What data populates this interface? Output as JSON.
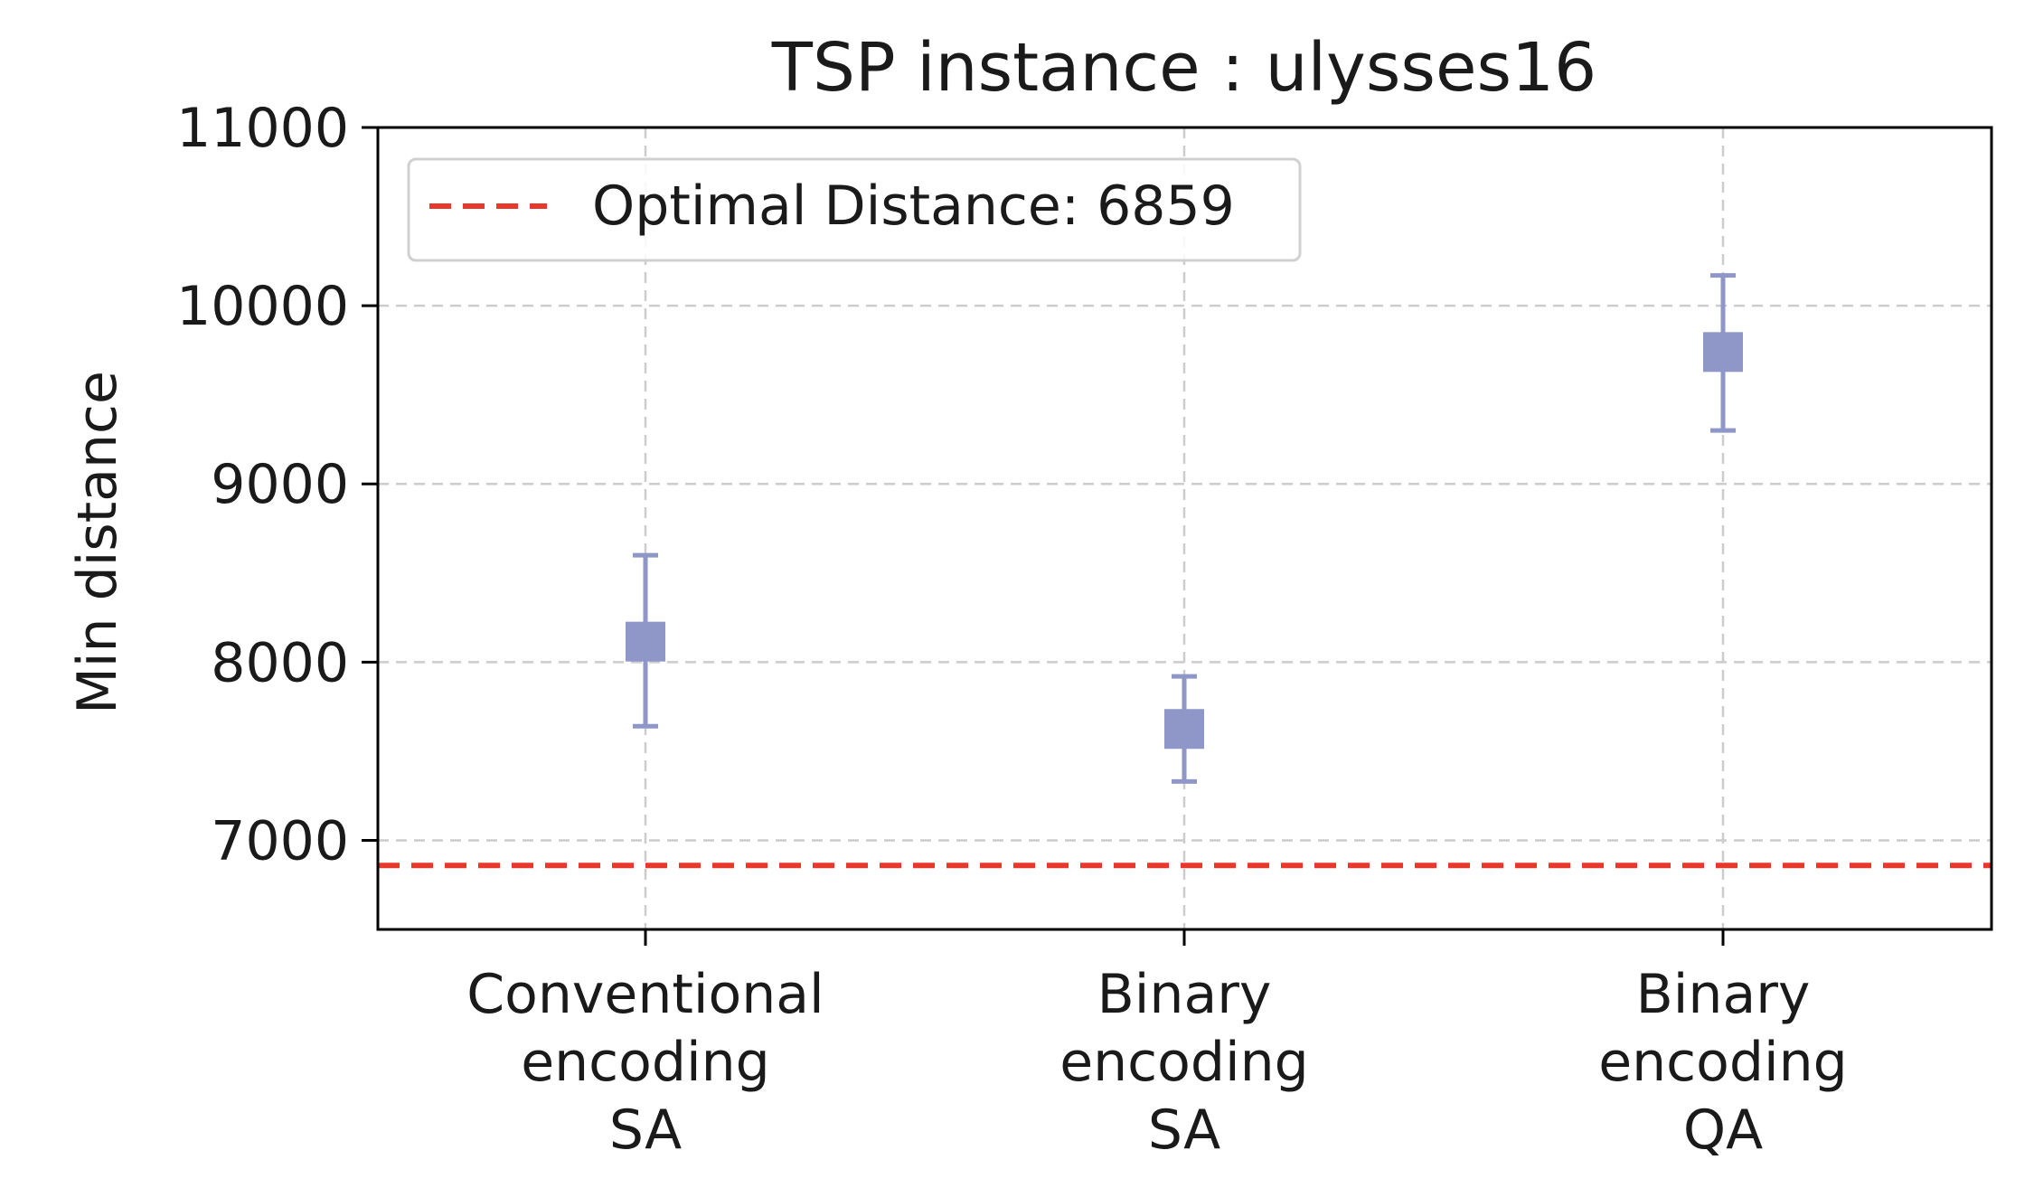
{
  "chart_data": {
    "type": "scatter",
    "title": "TSP instance : ulysses16",
    "xlabel": "",
    "ylabel": "Min distance",
    "ylim": [
      6500,
      11000
    ],
    "yticks": [
      7000,
      8000,
      9000,
      10000,
      11000
    ],
    "categories": [
      [
        "Conventional",
        "encoding",
        "SA"
      ],
      [
        "Binary",
        "encoding",
        "SA"
      ],
      [
        "Binary",
        "encoding",
        "QA"
      ]
    ],
    "series": [
      {
        "values": [
          8115,
          7625,
          9740
        ],
        "err_low": [
          7640,
          7330,
          9300
        ],
        "err_high": [
          8600,
          7920,
          10170
        ]
      }
    ],
    "reference_line": {
      "label": "Optimal Distance: 6859",
      "value": 6859
    },
    "grid": true,
    "legend_position": "upper-left",
    "colors": {
      "marker": "#8e97c8",
      "reference": "#e8372b",
      "grid": "#cccccc",
      "axis": "#000000"
    }
  }
}
